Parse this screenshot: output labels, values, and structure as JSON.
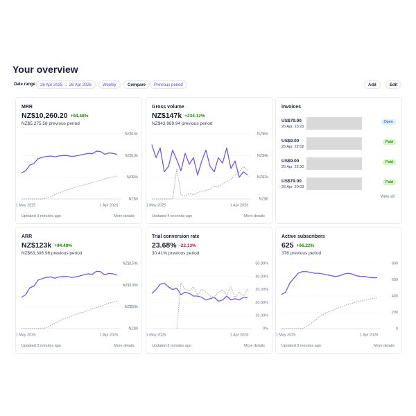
{
  "header": {
    "title": "Your overview"
  },
  "filters": {
    "date_range_label": "Date range",
    "date_range": "26 Apr 2025 → 26 Apr 2026",
    "interval": "Weekly",
    "compare_label": "Compare",
    "compare": "Previous period"
  },
  "actions": {
    "add": "Add",
    "edit": "Edit"
  },
  "invoices": {
    "title": "Invoices",
    "view_all": "View all",
    "rows": [
      {
        "amount": "US$79.00",
        "time": "26 Apr, 23:26",
        "status": "Open"
      },
      {
        "amount": "US$9.00",
        "time": "26 Apr, 22:52",
        "status": "Paid"
      },
      {
        "amount": "US$9.00",
        "time": "26 Apr, 22:30",
        "status": "Paid"
      },
      {
        "amount": "US$79.00",
        "time": "26 Apr, 20:03",
        "status": "Paid"
      }
    ]
  },
  "cards": [
    {
      "title": "MRR",
      "value": "NZ$10,260.20",
      "change": "+94.48%",
      "previous": "NZ$5,275.58 previous period",
      "updated": "Updated 3 minutes ago",
      "more": "More details",
      "chart": {
        "type": "line",
        "categories": [
          null,
          "1 May 2025",
          null,
          null,
          null,
          null,
          null,
          null,
          null,
          null,
          null,
          null,
          null,
          null,
          null,
          null,
          null,
          null,
          null,
          null,
          null,
          "1 Apr 2026",
          null,
          null
        ],
        "ylim": [
          0,
          15000
        ],
        "yticks": [
          {
            "value": 0,
            "label": "NZ$0"
          },
          {
            "value": 5000,
            "label": "NZ$5k"
          },
          {
            "value": 10000,
            "label": "NZ$10k"
          },
          {
            "value": 15000,
            "label": "NZ$15k"
          }
        ],
        "series": [
          {
            "color": "#7356e8",
            "style": "solid",
            "values": [
              6000,
              6500,
              7800,
              8200,
              9300,
              9600,
              9800,
              9900,
              9700,
              9900,
              10000,
              10000,
              9800,
              9900,
              10100,
              10300,
              10500,
              10400,
              11000,
              10900,
              10300,
              10600,
              10500,
              10260
            ]
          },
          {
            "color": "#9a9a9a",
            "style": "dashed",
            "values": [
              0,
              0,
              0,
              0,
              0,
              0,
              200,
              600,
              1000,
              1400,
              1800,
              2100,
              2400,
              2700,
              3000,
              3200,
              3500,
              3800,
              4000,
              4300,
              4600,
              4900,
              5100,
              5276
            ]
          }
        ]
      }
    },
    {
      "title": "Gross volume",
      "value": "NZ$147k",
      "change": "+234.12%",
      "previous": "NZ$43,969.94 previous period",
      "updated": "Updated 4 seconds ago",
      "more": "More details",
      "chart": {
        "type": "line",
        "categories": [
          null,
          "1 May 2025",
          null,
          null,
          null,
          null,
          null,
          null,
          null,
          null,
          null,
          null,
          null,
          null,
          null,
          null,
          null,
          null,
          null,
          null,
          null,
          "1 Apr 2026",
          null,
          null
        ],
        "ylim": [
          0,
          6000
        ],
        "yticks": [
          {
            "value": 0,
            "label": "NZ$0"
          },
          {
            "value": 2000,
            "label": "NZ$2k"
          },
          {
            "value": 4000,
            "label": "NZ$4k"
          },
          {
            "value": 6000,
            "label": "NZ$6k"
          }
        ],
        "series": [
          {
            "color": "#7356e8",
            "style": "solid",
            "values": [
              5000,
              3800,
              4700,
              2500,
              3000,
              4500,
              3600,
              2600,
              4200,
              3200,
              3800,
              2200,
              3500,
              4500,
              3000,
              2500,
              3800,
              3300,
              4700,
              2800,
              3500,
              2000,
              2500,
              2200
            ]
          },
          {
            "color": "#9a9a9a",
            "style": "dashed",
            "values": [
              0,
              0,
              0,
              0,
              0,
              0,
              2800,
              400,
              300,
              500,
              400,
              600,
              700,
              800,
              900,
              1200,
              1100,
              1400,
              1600,
              1800,
              2200,
              2500,
              3000,
              2600
            ]
          }
        ]
      }
    },
    {
      "title": "ARR",
      "value": "NZ$123k",
      "change": "+94.48%",
      "previous": "NZ$63,306.96 previous period",
      "updated": "Updated 3 minutes ago",
      "more": "More details",
      "chart": {
        "type": "line",
        "categories": [
          null,
          "1 May 2025",
          null,
          null,
          null,
          null,
          null,
          null,
          null,
          null,
          null,
          null,
          null,
          null,
          null,
          null,
          null,
          null,
          null,
          null,
          null,
          "1 Apr 2026",
          null,
          null
        ],
        "ylim": [
          0,
          150000
        ],
        "yticks": [
          {
            "value": 0,
            "label": "NZ$0"
          },
          {
            "value": 50000,
            "label": "NZ$50k"
          },
          {
            "value": 100000,
            "label": "NZ$100k"
          },
          {
            "value": 150000,
            "label": "NZ$150k"
          }
        ],
        "series": [
          {
            "color": "#7356e8",
            "style": "solid",
            "values": [
              72000,
              78000,
              94000,
              98000,
              112000,
              115000,
              118000,
              119000,
              116000,
              119000,
              120000,
              120000,
              118000,
              119000,
              121000,
              124000,
              126000,
              125000,
              132000,
              131000,
              124000,
              127000,
              126000,
              123000
            ]
          },
          {
            "color": "#9a9a9a",
            "style": "dashed",
            "values": [
              0,
              0,
              0,
              0,
              0,
              0,
              2400,
              7200,
              12000,
              17000,
              22000,
              25000,
              29000,
              32000,
              36000,
              38000,
              42000,
              46000,
              48000,
              52000,
              55000,
              59000,
              61000,
              63000
            ]
          }
        ]
      }
    },
    {
      "title": "Trial conversion rate",
      "value": "23.68%",
      "change": "-22.13%",
      "previous": "30.41% previous period",
      "updated": "Updated 3 minutes ago",
      "more": "More details",
      "chart": {
        "type": "line",
        "categories": [
          null,
          "1 May 2025",
          null,
          null,
          null,
          null,
          null,
          null,
          null,
          null,
          null,
          null,
          null,
          null,
          null,
          null,
          null,
          null,
          null,
          null,
          null,
          "1 Apr 2026",
          null,
          null
        ],
        "ylim": [
          0,
          50
        ],
        "yticks": [
          {
            "value": 0,
            "label": "0%"
          },
          {
            "value": 10,
            "label": "10.00%"
          },
          {
            "value": 20,
            "label": "20.00%"
          },
          {
            "value": 30,
            "label": "30.00%"
          },
          {
            "value": 40,
            "label": "40.00%"
          },
          {
            "value": 50,
            "label": "50.00%"
          }
        ],
        "series": [
          {
            "color": "#7356e8",
            "style": "solid",
            "values": [
              27,
              30,
              34,
              35,
              32,
              30,
              31,
              26,
              28,
              27,
              25,
              25,
              24,
              22,
              23,
              24,
              21,
              22,
              25,
              22,
              23,
              22,
              24,
              23.68
            ]
          },
          {
            "color": "#9a9a9a",
            "style": "dashed",
            "values": [
              null,
              null,
              null,
              null,
              null,
              null,
              0,
              35,
              30,
              29,
              32,
              26,
              30,
              28,
              25,
              24,
              28,
              30,
              26,
              32,
              24,
              28,
              25,
              30.41
            ]
          }
        ]
      }
    },
    {
      "title": "Active subscribers",
      "value": "625",
      "change": "+66.22%",
      "previous": "376 previous period",
      "updated": "Updated 3 minutes ago",
      "more": "More details",
      "chart": {
        "type": "line",
        "categories": [
          null,
          "1 May 2025",
          null,
          null,
          null,
          null,
          null,
          null,
          null,
          null,
          null,
          null,
          null,
          null,
          null,
          null,
          null,
          null,
          null,
          null,
          null,
          "1 Apr 2026",
          null,
          null
        ],
        "ylim": [
          0,
          800
        ],
        "yticks": [
          0,
          200,
          400,
          600,
          800
        ],
        "series": [
          {
            "color": "#7356e8",
            "style": "solid",
            "values": [
              420,
              450,
              560,
              620,
              680,
              700,
              700,
              690,
              680,
              680,
              670,
              660,
              650,
              640,
              650,
              670,
              680,
              670,
              650,
              640,
              640,
              630,
              625,
              625
            ]
          },
          {
            "color": "#9a9a9a",
            "style": "dashed",
            "values": [
              0,
              0,
              0,
              0,
              0,
              0,
              30,
              60,
              100,
              140,
              170,
              200,
              220,
              240,
              260,
              280,
              300,
              310,
              330,
              340,
              350,
              360,
              370,
              376
            ]
          }
        ]
      }
    }
  ]
}
